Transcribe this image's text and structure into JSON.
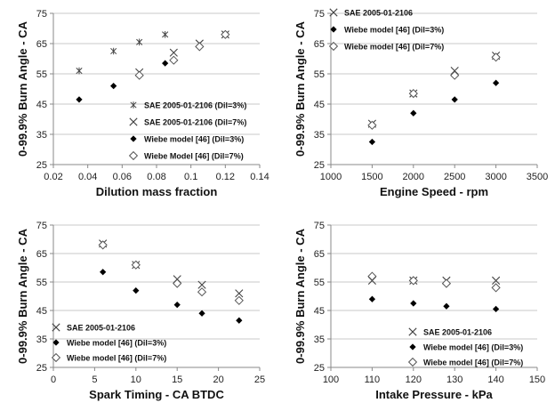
{
  "chart_data": [
    {
      "type": "scatter",
      "xlabel": "Dilution mass fraction",
      "ylabel": "0-99.9% Burn Angle - CA",
      "xlim": [
        0.02,
        0.14
      ],
      "ylim": [
        25,
        75
      ],
      "xticks": [
        "0.02",
        "0.04",
        "0.06",
        "0.08",
        "0.1",
        "0.12",
        "0.14"
      ],
      "yticks": [
        "25",
        "35",
        "45",
        "55",
        "65",
        "75"
      ],
      "grid": "horizontal",
      "legend": "bottom-right",
      "series": [
        {
          "name": "SAE 2005-01-2106 (Dil=3%)",
          "marker": "star",
          "x": [
            0.035,
            0.055,
            0.07,
            0.085,
            0.12
          ],
          "y": [
            56,
            62.5,
            65.5,
            68,
            68
          ]
        },
        {
          "name": "SAE 2005-01-2106 (Dil=7%)",
          "marker": "x",
          "x": [
            0.07,
            0.09,
            0.105,
            0.12
          ],
          "y": [
            55.5,
            62,
            65,
            68
          ]
        },
        {
          "name": "Wiebe model [46] (Dil=3%)",
          "marker": "diamond-filled",
          "x": [
            0.035,
            0.055,
            0.07,
            0.085
          ],
          "y": [
            46.5,
            51,
            54.5,
            58.5
          ]
        },
        {
          "name": "Wiebe Model [46] (Dil=7%)",
          "marker": "diamond-open",
          "x": [
            0.07,
            0.09,
            0.105,
            0.12
          ],
          "y": [
            54.5,
            59.5,
            64,
            68
          ]
        }
      ]
    },
    {
      "type": "scatter",
      "xlabel": "Engine Speed - rpm",
      "ylabel": "0-99.9% Burn Angle - CA",
      "xlim": [
        1000,
        3500
      ],
      "ylim": [
        25,
        75
      ],
      "xticks": [
        "1000",
        "1500",
        "2000",
        "2500",
        "3000",
        "3500"
      ],
      "yticks": [
        "25",
        "35",
        "45",
        "55",
        "65",
        "75"
      ],
      "grid": "horizontal",
      "legend": "top-left",
      "series": [
        {
          "name": "SAE 2005-01-2106",
          "marker": "x",
          "x": [
            1500,
            2000,
            2500,
            3000
          ],
          "y": [
            38.5,
            48.5,
            56,
            61
          ]
        },
        {
          "name": "Wiebe model [46] (Dil=3%)",
          "marker": "diamond-filled",
          "x": [
            1500,
            2000,
            2500,
            3000
          ],
          "y": [
            32.5,
            42,
            46.5,
            52
          ]
        },
        {
          "name": "Wiebe model [46] (Dil=7%)",
          "marker": "diamond-open",
          "x": [
            1500,
            2000,
            2500,
            3000
          ],
          "y": [
            38,
            48.5,
            54.5,
            60.5
          ]
        }
      ]
    },
    {
      "type": "scatter",
      "xlabel": "Spark Timing - CA BTDC",
      "ylabel": "0-99.9% Burn Angle - CA",
      "xlim": [
        0,
        25
      ],
      "ylim": [
        25,
        75
      ],
      "xticks": [
        "0",
        "5",
        "10",
        "15",
        "20",
        "25"
      ],
      "yticks": [
        "25",
        "35",
        "45",
        "55",
        "65",
        "75"
      ],
      "grid": "horizontal",
      "legend": "bottom-left",
      "series": [
        {
          "name": "SAE 2005-01-2106",
          "marker": "x",
          "x": [
            6,
            10,
            15,
            18,
            22.5
          ],
          "y": [
            68.5,
            61,
            56,
            54,
            51
          ]
        },
        {
          "name": "Wiebe model [46] (Dil=3%)",
          "marker": "diamond-filled",
          "x": [
            6,
            10,
            15,
            18,
            22.5
          ],
          "y": [
            58.5,
            52,
            47,
            44,
            41.5
          ]
        },
        {
          "name": "Wiebe model [46] (Dil=7%)",
          "marker": "diamond-open",
          "x": [
            6,
            10,
            15,
            18,
            22.5
          ],
          "y": [
            68,
            61,
            54.5,
            51.5,
            48.5
          ]
        }
      ]
    },
    {
      "type": "scatter",
      "xlabel": "Intake Pressure - kPa",
      "ylabel": "0-99.9% Burn Angle - CA",
      "xlim": [
        100,
        150
      ],
      "ylim": [
        25,
        75
      ],
      "xticks": [
        "100",
        "110",
        "120",
        "130",
        "140",
        "150"
      ],
      "yticks": [
        "25",
        "35",
        "45",
        "55",
        "65",
        "75"
      ],
      "grid": "horizontal",
      "legend": "bottom-right",
      "series": [
        {
          "name": "SAE 2005-01-2106",
          "marker": "x",
          "x": [
            110,
            120,
            128,
            140
          ],
          "y": [
            55.5,
            55.5,
            55.5,
            55.5
          ]
        },
        {
          "name": "Wiebe model [46] (Dil=3%)",
          "marker": "diamond-filled",
          "x": [
            110,
            120,
            128,
            140
          ],
          "y": [
            49,
            47.5,
            46.5,
            45.5
          ]
        },
        {
          "name": "Wiebe model [46] (Dil=7%)",
          "marker": "diamond-open",
          "x": [
            110,
            120,
            128,
            140
          ],
          "y": [
            57,
            55.5,
            54.5,
            53
          ]
        }
      ]
    }
  ]
}
